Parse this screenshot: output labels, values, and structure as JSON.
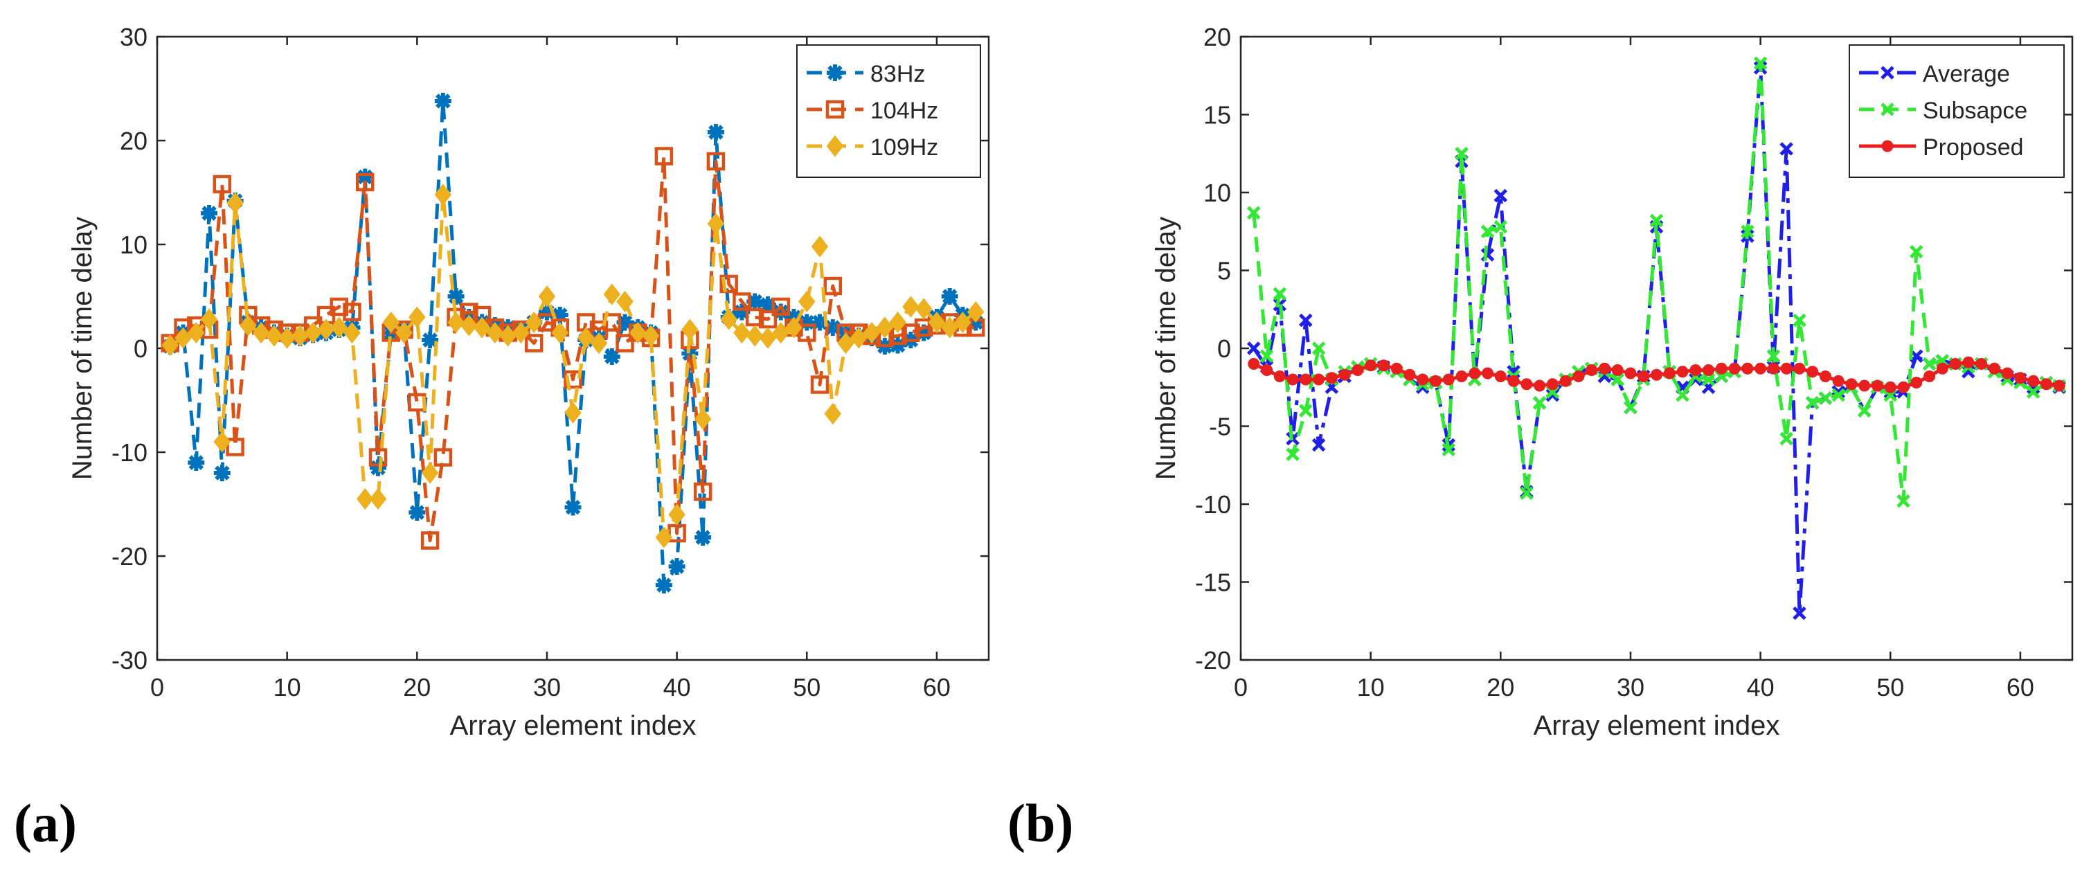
{
  "chart_data": [
    {
      "type": "line",
      "panel_label": "(a)",
      "xlabel": "Array element index",
      "ylabel": "Number of time delay",
      "xlim": [
        0,
        64
      ],
      "ylim": [
        -30,
        30
      ],
      "xticks": [
        0,
        10,
        20,
        30,
        40,
        50,
        60
      ],
      "yticks": [
        -30,
        -20,
        -10,
        0,
        10,
        20,
        30
      ],
      "x": [
        1,
        2,
        3,
        4,
        5,
        6,
        7,
        8,
        9,
        10,
        11,
        12,
        13,
        14,
        15,
        16,
        17,
        18,
        19,
        20,
        21,
        22,
        23,
        24,
        25,
        26,
        27,
        28,
        29,
        30,
        31,
        32,
        33,
        34,
        35,
        36,
        37,
        38,
        39,
        40,
        41,
        42,
        43,
        44,
        45,
        46,
        47,
        48,
        49,
        50,
        51,
        52,
        53,
        54,
        55,
        56,
        57,
        58,
        59,
        60,
        61,
        62,
        63
      ],
      "legend_position": "top-right",
      "series": [
        {
          "name": "83Hz",
          "color": "#0072BD",
          "marker": "asterisk",
          "values": [
            0.2,
            1.5,
            -11,
            13,
            -12,
            14.2,
            2.5,
            2.0,
            1.5,
            1.2,
            1.0,
            1.3,
            1.5,
            1.8,
            2.0,
            16.5,
            -11.5,
            1.5,
            1.8,
            -15.8,
            0.8,
            23.8,
            5.0,
            3.0,
            2.5,
            2.2,
            2.0,
            1.8,
            2.5,
            3.5,
            3.2,
            -15.3,
            0.8,
            1.0,
            -0.8,
            2.5,
            2.0,
            1.5,
            -22.8,
            -21.0,
            -0.5,
            -18.2,
            20.8,
            3.0,
            3.5,
            4.5,
            4.2,
            3.5,
            3.0,
            2.5,
            2.5,
            2.0,
            1.5,
            1.2,
            1.0,
            0.2,
            0.3,
            0.8,
            1.5,
            3.0,
            5.0,
            3.2,
            2.5
          ]
        },
        {
          "name": "104Hz",
          "color": "#D95319",
          "marker": "square",
          "values": [
            0.5,
            2.0,
            2.2,
            1.8,
            15.8,
            -9.5,
            3.2,
            2.2,
            1.8,
            1.5,
            1.5,
            2.2,
            3.2,
            4.0,
            3.5,
            16.0,
            -10.5,
            1.5,
            1.8,
            -5.2,
            -18.5,
            -10.5,
            3.0,
            3.5,
            3.2,
            2.0,
            1.5,
            1.8,
            0.5,
            2.5,
            2.0,
            -3.0,
            2.5,
            1.8,
            2.5,
            0.5,
            1.5,
            1.0,
            18.5,
            -17.8,
            0.8,
            -13.8,
            18.0,
            6.2,
            4.5,
            3.0,
            2.8,
            4.0,
            2.0,
            1.5,
            -3.5,
            6.0,
            1.5,
            1.5,
            1.2,
            1.0,
            1.2,
            1.5,
            2.0,
            2.2,
            2.5,
            2.0,
            2.0
          ]
        },
        {
          "name": "109Hz",
          "color": "#EDB120",
          "marker": "diamond",
          "values": [
            0.3,
            1.0,
            1.5,
            2.8,
            -9.0,
            14.0,
            2.2,
            1.5,
            1.2,
            1.0,
            1.2,
            1.5,
            1.8,
            2.0,
            1.5,
            -14.5,
            -14.5,
            2.5,
            1.5,
            3.0,
            -12.0,
            14.8,
            2.5,
            2.2,
            2.0,
            1.5,
            1.2,
            1.5,
            2.5,
            5.0,
            1.5,
            -6.2,
            1.0,
            0.5,
            5.2,
            4.5,
            1.5,
            1.2,
            -18.2,
            -16.0,
            1.8,
            -6.8,
            12.0,
            2.8,
            1.5,
            1.2,
            1.0,
            1.5,
            2.0,
            4.5,
            9.8,
            -6.3,
            0.5,
            1.0,
            1.5,
            2.0,
            2.5,
            4.0,
            3.8,
            2.5,
            2.0,
            2.5,
            3.5
          ]
        }
      ]
    },
    {
      "type": "line",
      "panel_label": "(b)",
      "xlabel": "Array element index",
      "ylabel": "Number of time delay",
      "xlim": [
        0,
        64
      ],
      "ylim": [
        -20,
        20
      ],
      "xticks": [
        0,
        10,
        20,
        30,
        40,
        50,
        60
      ],
      "yticks": [
        -20,
        -15,
        -10,
        -5,
        0,
        5,
        10,
        15,
        20
      ],
      "x": [
        1,
        2,
        3,
        4,
        5,
        6,
        7,
        8,
        9,
        10,
        11,
        12,
        13,
        14,
        15,
        16,
        17,
        18,
        19,
        20,
        21,
        22,
        23,
        24,
        25,
        26,
        27,
        28,
        29,
        30,
        31,
        32,
        33,
        34,
        35,
        36,
        37,
        38,
        39,
        40,
        41,
        42,
        43,
        44,
        45,
        46,
        47,
        48,
        49,
        50,
        51,
        52,
        53,
        54,
        55,
        56,
        57,
        58,
        59,
        60,
        61,
        62,
        63
      ],
      "legend_position": "top-right",
      "series": [
        {
          "name": "Average",
          "color": "#1F1FE8",
          "marker": "x",
          "values": [
            0,
            -1.2,
            2.8,
            -5.8,
            1.8,
            -6.2,
            -2.5,
            -1.8,
            -1.2,
            -1.0,
            -1.2,
            -1.5,
            -2.0,
            -2.5,
            -2.2,
            -6.2,
            12.0,
            -2.0,
            6.0,
            9.8,
            -1.5,
            -9.2,
            -3.5,
            -3.0,
            -2.0,
            -1.5,
            -1.3,
            -1.8,
            -2.0,
            -3.8,
            -1.8,
            7.8,
            -1.5,
            -2.5,
            -2.0,
            -2.5,
            -1.8,
            -1.5,
            7.2,
            18.0,
            -1.2,
            12.8,
            -17.0,
            -3.5,
            -3.2,
            -2.8,
            -2.5,
            -4.0,
            -2.5,
            -2.8,
            -2.8,
            -0.5,
            -1.0,
            -0.8,
            -1.0,
            -1.5,
            -1.0,
            -1.5,
            -1.8,
            -2.0,
            -2.5,
            -2.2,
            -2.5
          ]
        },
        {
          "name": "Subsapce",
          "color": "#33E833",
          "marker": "x",
          "values": [
            8.7,
            -0.5,
            3.5,
            -6.8,
            -4.0,
            0.0,
            -2.0,
            -1.5,
            -1.2,
            -1.0,
            -1.3,
            -1.5,
            -2.0,
            -2.3,
            -2.2,
            -6.5,
            12.5,
            -2.0,
            7.5,
            7.8,
            -1.8,
            -9.3,
            -3.5,
            -2.8,
            -2.0,
            -1.5,
            -1.3,
            -1.5,
            -2.0,
            -3.8,
            -2.0,
            8.2,
            -1.5,
            -3.0,
            -1.8,
            -2.0,
            -1.8,
            -1.5,
            7.5,
            18.3,
            -0.5,
            -5.8,
            1.8,
            -3.5,
            -3.2,
            -3.0,
            -2.5,
            -4.0,
            -2.5,
            -3.0,
            -9.8,
            6.2,
            -1.0,
            -0.8,
            -1.0,
            -1.2,
            -1.0,
            -1.5,
            -2.0,
            -2.2,
            -2.8,
            -2.2,
            -2.4
          ]
        },
        {
          "name": "Proposed",
          "color": "#E81F1F",
          "marker": "circle",
          "values": [
            -1.0,
            -1.4,
            -1.8,
            -2.0,
            -2.0,
            -2.0,
            -1.9,
            -1.7,
            -1.4,
            -1.1,
            -1.1,
            -1.3,
            -1.7,
            -2.0,
            -2.1,
            -2.0,
            -1.8,
            -1.6,
            -1.6,
            -1.8,
            -2.1,
            -2.3,
            -2.4,
            -2.3,
            -2.1,
            -1.8,
            -1.4,
            -1.3,
            -1.4,
            -1.6,
            -1.8,
            -1.7,
            -1.6,
            -1.5,
            -1.4,
            -1.4,
            -1.3,
            -1.3,
            -1.3,
            -1.3,
            -1.3,
            -1.3,
            -1.3,
            -1.5,
            -1.8,
            -2.1,
            -2.3,
            -2.4,
            -2.4,
            -2.5,
            -2.5,
            -2.2,
            -1.8,
            -1.3,
            -1.0,
            -0.9,
            -1.0,
            -1.3,
            -1.6,
            -1.9,
            -2.1,
            -2.3,
            -2.4
          ]
        }
      ]
    }
  ]
}
